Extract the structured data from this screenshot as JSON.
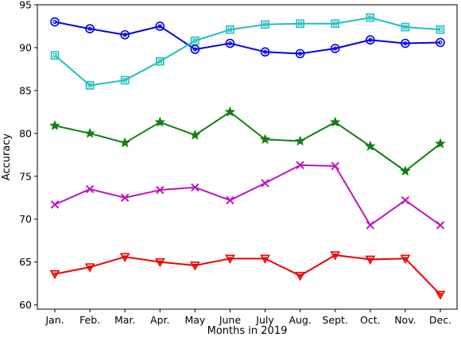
{
  "chart_data": {
    "type": "line",
    "title": "",
    "xlabel": "Months in 2019",
    "ylabel": "Accuracy",
    "categories": [
      "Jan.",
      "Feb.",
      "Mar.",
      "Apr.",
      "May",
      "June",
      "July",
      "Aug.",
      "Sept.",
      "Oct.",
      "Nov.",
      "Dec."
    ],
    "ylim": [
      59.5,
      95
    ],
    "yticks": [
      60,
      65,
      70,
      75,
      80,
      85,
      90,
      95
    ],
    "grid": false,
    "series": [
      {
        "color": "#0000ee",
        "marker": "circle",
        "values": [
          93.0,
          92.2,
          91.5,
          92.5,
          89.8,
          90.5,
          89.5,
          89.3,
          89.9,
          90.9,
          90.5,
          90.6
        ]
      },
      {
        "color": "#1fbfbf",
        "marker": "square",
        "values": [
          89.1,
          85.6,
          86.2,
          88.4,
          90.8,
          92.1,
          92.7,
          92.8,
          92.8,
          93.5,
          92.4,
          92.1
        ]
      },
      {
        "color": "#118011",
        "marker": "star",
        "values": [
          80.9,
          80.0,
          78.9,
          81.3,
          79.8,
          82.5,
          79.3,
          79.1,
          81.3,
          78.5,
          75.6,
          78.8
        ]
      },
      {
        "color": "#bf14bf",
        "marker": "x",
        "values": [
          71.7,
          73.5,
          72.5,
          73.4,
          73.7,
          72.2,
          74.2,
          76.3,
          76.2,
          69.3,
          72.2,
          69.3
        ]
      },
      {
        "color": "#ee0000",
        "marker": "triangle-down",
        "values": [
          63.6,
          64.4,
          65.6,
          65.0,
          64.6,
          65.4,
          65.4,
          63.4,
          65.8,
          65.3,
          65.4,
          61.2
        ]
      }
    ]
  }
}
